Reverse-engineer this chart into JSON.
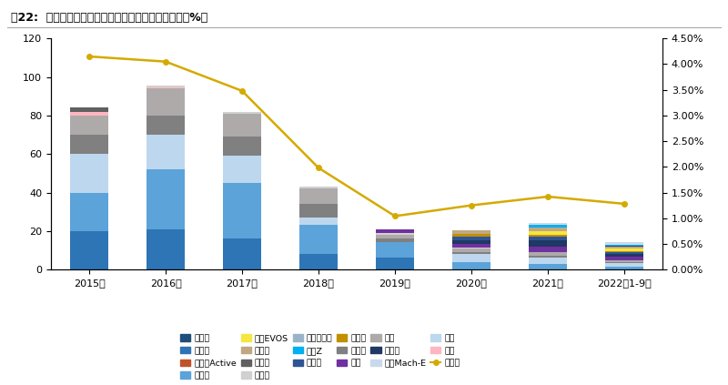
{
  "title": "图22:  长安福特年度终端销量结构（万辆）及市占率（%）",
  "years": [
    "2015年",
    "2016年",
    "2017年",
    "2018年",
    "2019年",
    "2020年",
    "2021年",
    "2022年1-9月"
  ],
  "market_share": [
    4.15,
    4.05,
    3.48,
    1.98,
    1.04,
    1.25,
    1.42,
    1.28
  ],
  "segments": [
    {
      "name": "福克斯",
      "color": "#2E75B6",
      "values": [
        20,
        21,
        16,
        8,
        6,
        0,
        0,
        0
      ]
    },
    {
      "name": "福睿斯",
      "color": "#5BA3D9",
      "values": [
        20,
        31,
        29,
        15,
        8,
        4,
        3,
        1.5
      ]
    },
    {
      "name": "翼虎",
      "color": "#BDD7EE",
      "values": [
        20,
        18,
        14,
        4,
        0,
        4,
        3,
        2
      ]
    },
    {
      "name": "蒙迪欧",
      "color": "#808080",
      "values": [
        10,
        10,
        10,
        7,
        2,
        1,
        1,
        0.5
      ]
    },
    {
      "name": "锐界",
      "color": "#AEAAAA",
      "values": [
        10,
        14,
        12,
        8,
        2,
        2,
        2,
        1
      ]
    },
    {
      "name": "致胜",
      "color": "#FFB6C1",
      "values": [
        2,
        0.5,
        0,
        0,
        0,
        0,
        0,
        0
      ]
    },
    {
      "name": "嘉年华",
      "color": "#606060",
      "values": [
        2,
        0,
        0,
        0,
        0,
        0,
        0,
        0
      ]
    },
    {
      "name": "金牛座",
      "color": "#D0D0D0",
      "values": [
        0,
        1,
        1,
        1,
        1,
        0.3,
        0,
        0
      ]
    },
    {
      "name": "经典福克斯",
      "color": "#9AB3C8",
      "values": [
        0,
        0,
        0,
        0,
        0,
        0,
        0,
        0
      ]
    },
    {
      "name": "锐际",
      "color": "#7030A0",
      "values": [
        0,
        0,
        0,
        0,
        2,
        2,
        3,
        1.5
      ]
    },
    {
      "name": "探险者",
      "color": "#1F3864",
      "values": [
        0,
        0,
        0,
        0,
        0,
        2,
        3,
        1.5
      ]
    },
    {
      "name": "麦柯斯",
      "color": "#2F5496",
      "values": [
        0,
        0,
        0,
        0,
        0,
        2,
        2,
        1
      ]
    },
    {
      "name": "冒险家",
      "color": "#C09000",
      "values": [
        0,
        0,
        0,
        0,
        0,
        1,
        1,
        0.5
      ]
    },
    {
      "name": "福特EVOS",
      "color": "#F5E642",
      "values": [
        0,
        0,
        0,
        0,
        0,
        0,
        2,
        1.5
      ]
    },
    {
      "name": "航海家",
      "color": "#C0A882",
      "values": [
        0,
        0,
        0,
        0,
        0,
        2,
        2,
        1
      ]
    },
    {
      "name": "飞行家",
      "color": "#1F4E79",
      "values": [
        0,
        0,
        0,
        0,
        0,
        0,
        0,
        0.5
      ]
    },
    {
      "name": "林肯Z",
      "color": "#00B0F0",
      "values": [
        0,
        0,
        0,
        0,
        0,
        0,
        1,
        0.5
      ]
    },
    {
      "name": "野马Mach-E",
      "color": "#C9D9EC",
      "values": [
        0,
        0,
        0,
        0,
        0,
        0,
        1,
        1
      ]
    },
    {
      "name": "福克斯Active",
      "color": "#C0522A",
      "values": [
        0,
        0,
        0,
        0,
        0,
        0.3,
        0.3,
        0.2
      ]
    }
  ],
  "legend_items": [
    {
      "name": "飞行家",
      "color": "#1F4E79"
    },
    {
      "name": "福克斯",
      "color": "#2E75B6"
    },
    {
      "name": "福克斯Active",
      "color": "#C0522A"
    },
    {
      "name": "福睿斯",
      "color": "#5BA3D9"
    },
    {
      "name": "福特EVOS",
      "color": "#F5E642"
    },
    {
      "name": "航海家",
      "color": "#C0A882"
    },
    {
      "name": "嘉年华",
      "color": "#606060"
    },
    {
      "name": "金牛座",
      "color": "#D0D0D0"
    },
    {
      "name": "经典福克斯",
      "color": "#9AB3C8"
    },
    {
      "name": "林肯Z",
      "color": "#00B0F0"
    },
    {
      "name": "麦柯斯",
      "color": "#2F5496"
    },
    {
      "name": "冒险家",
      "color": "#C09000"
    },
    {
      "name": "蒙迪欧",
      "color": "#808080"
    },
    {
      "name": "锐际",
      "color": "#7030A0"
    },
    {
      "name": "锐界",
      "color": "#AEAAAA"
    },
    {
      "name": "探险者",
      "color": "#1F3864"
    },
    {
      "name": "野马Mach-E",
      "color": "#C9D9EC"
    },
    {
      "name": "翼虎",
      "color": "#BDD7EE"
    },
    {
      "name": "致胜",
      "color": "#FFB6C1"
    }
  ],
  "line_color": "#D4AA00",
  "background_color": "#FFFFFF",
  "bar_width": 0.5,
  "ylim_left": [
    0,
    120
  ],
  "yticks_left": [
    0,
    20,
    40,
    60,
    80,
    100,
    120
  ],
  "ms_ylim": [
    0,
    4.5
  ],
  "ms_yticks": [
    0.0,
    0.5,
    1.0,
    1.5,
    2.0,
    2.5,
    3.0,
    3.5,
    4.0,
    4.5
  ],
  "ms_yticklabels": [
    "0.00%",
    "0.50%",
    "1.00%",
    "1.50%",
    "2.00%",
    "2.50%",
    "3.00%",
    "3.50%",
    "4.00%",
    "4.50%"
  ]
}
